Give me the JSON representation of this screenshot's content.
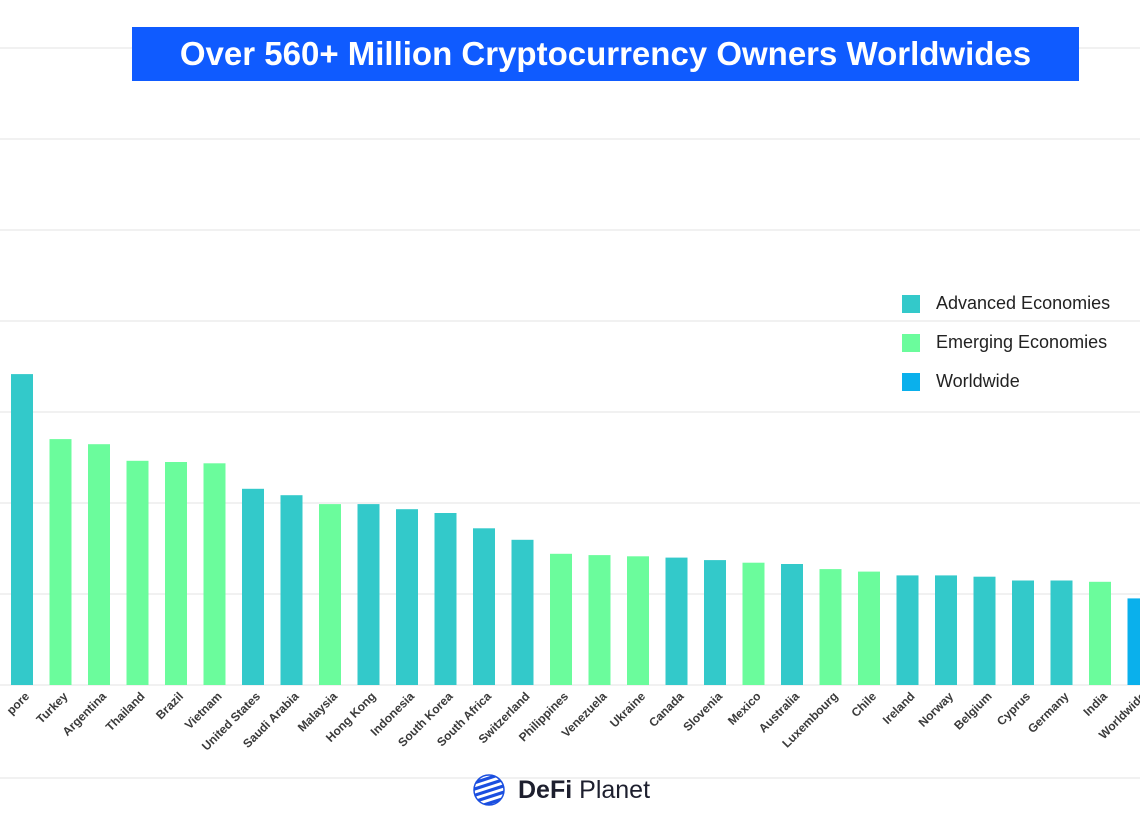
{
  "header": {
    "title": "Over 560+ Million Cryptocurrency Owners Worldwides"
  },
  "legend": {
    "items": [
      {
        "label": "Advanced Economies",
        "color": "#33c9ca"
      },
      {
        "label": "Emerging Economies",
        "color": "#6bfc9c"
      },
      {
        "label": "Worldwide",
        "color": "#0ab0ec"
      }
    ]
  },
  "footer": {
    "brand_part1": "DeFi",
    "brand_part2": "Planet",
    "logo_icon": "globe-icon"
  },
  "chart_data": {
    "type": "bar",
    "title": "Over 560+ Million Cryptocurrency Owners Worldwides",
    "xlabel": "",
    "ylabel": "",
    "grid": true,
    "legend_position": "right",
    "ylim": [
      0,
      50
    ],
    "categories": [
      "Singapore",
      "Turkey",
      "Argentina",
      "Thailand",
      "Brazil",
      "Vietnam",
      "United States",
      "Saudi Arabia",
      "Malaysia",
      "Hong Kong",
      "Indonesia",
      "South Korea",
      "South Africa",
      "Switzerland",
      "Philippines",
      "Venezuela",
      "Ukraine",
      "Canada",
      "Slovenia",
      "Mexico",
      "Australia",
      "Luxembourg",
      "Chile",
      "Ireland",
      "Norway",
      "Belgium",
      "Cyprus",
      "Germany",
      "India",
      "Worldwide"
    ],
    "tick_labels": [
      "pore",
      "Turkey",
      "Argentina",
      "Thailand",
      "Brazil",
      "Vietnam",
      "United States",
      "Saudi Arabia",
      "Malaysia",
      "Hong Kong",
      "Indonesia",
      "South Korea",
      "South Africa",
      "Switzerland",
      "Philippines",
      "Venezuela",
      "Ukraine",
      "Canada",
      "Slovenia",
      "Mexico",
      "Australia",
      "Luxembourg",
      "Chile",
      "Ireland",
      "Norway",
      "Belgium",
      "Cyprus",
      "Germany",
      "India",
      "Worldwide"
    ],
    "values": [
      24.4,
      19.3,
      18.9,
      17.6,
      17.5,
      17.4,
      15.4,
      14.9,
      14.2,
      14.2,
      13.8,
      13.5,
      12.3,
      11.4,
      10.3,
      10.2,
      10.1,
      10.0,
      9.8,
      9.6,
      9.5,
      9.1,
      8.9,
      8.6,
      8.6,
      8.5,
      8.2,
      8.2,
      8.1,
      6.8
    ],
    "groups": [
      "Advanced Economies",
      "Emerging Economies",
      "Emerging Economies",
      "Emerging Economies",
      "Emerging Economies",
      "Emerging Economies",
      "Advanced Economies",
      "Advanced Economies",
      "Emerging Economies",
      "Advanced Economies",
      "Advanced Economies",
      "Advanced Economies",
      "Advanced Economies",
      "Advanced Economies",
      "Emerging Economies",
      "Emerging Economies",
      "Emerging Economies",
      "Advanced Economies",
      "Advanced Economies",
      "Emerging Economies",
      "Advanced Economies",
      "Emerging Economies",
      "Emerging Economies",
      "Advanced Economies",
      "Advanced Economies",
      "Advanced Economies",
      "Advanced Economies",
      "Advanced Economies",
      "Emerging Economies",
      "Worldwide"
    ]
  }
}
